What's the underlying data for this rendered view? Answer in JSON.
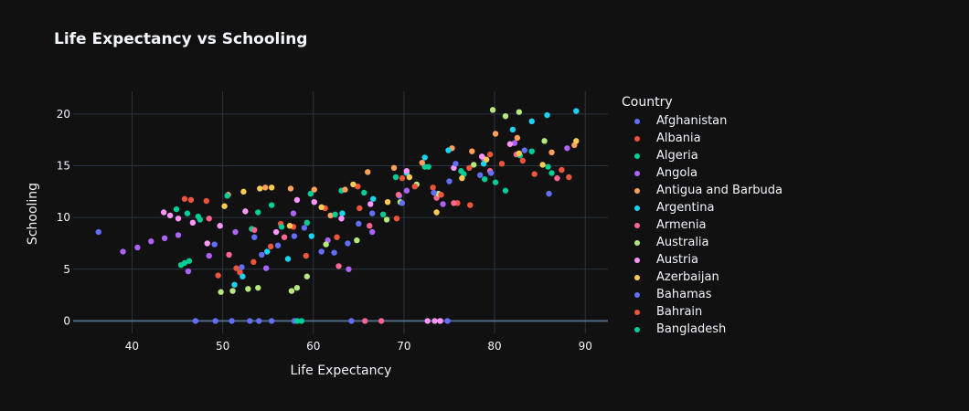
{
  "chart_data": {
    "type": "scatter",
    "title": "Life Expectancy vs Schooling",
    "xlabel": "Life Expectancy",
    "ylabel": "Schooling",
    "xlim": [
      33.5,
      92.5
    ],
    "ylim": [
      -1.2,
      22.2
    ],
    "xticks": [
      40,
      50,
      60,
      70,
      80,
      90
    ],
    "yticks": [
      0,
      5,
      10,
      15,
      20
    ],
    "grid": true,
    "legend_title": "Country",
    "legend_position": "right",
    "series": [
      {
        "name": "Afghanistan",
        "color": "#636efa",
        "points": [
          [
            36.3,
            8.6
          ],
          [
            47,
            0
          ],
          [
            49.2,
            0
          ],
          [
            51,
            0
          ],
          [
            53,
            0
          ],
          [
            54,
            0
          ],
          [
            55.4,
            0
          ],
          [
            57.9,
            0
          ],
          [
            64.2,
            0
          ],
          [
            74,
            0
          ],
          [
            74.8,
            0
          ],
          [
            53.5,
            8.1
          ],
          [
            56.1,
            7.3
          ],
          [
            59,
            9
          ],
          [
            62.3,
            6.6
          ],
          [
            65,
            9.4
          ],
          [
            69.5,
            12.1
          ],
          [
            75,
            13.5
          ],
          [
            78.4,
            14.1
          ]
        ]
      },
      {
        "name": "Albania",
        "color": "#EF553B",
        "points": [
          [
            45.8,
            11.8
          ],
          [
            46.5,
            11.7
          ],
          [
            48.2,
            11.6
          ],
          [
            49.5,
            4.4
          ],
          [
            51.9,
            4.7
          ],
          [
            55.3,
            7.2
          ],
          [
            57.8,
            9.1
          ],
          [
            61.3,
            10.9
          ],
          [
            64.9,
            13
          ],
          [
            69.8,
            13.8
          ],
          [
            73.2,
            12.9
          ],
          [
            75.9,
            11.4
          ],
          [
            77.2,
            14.8
          ],
          [
            79.5,
            16.1
          ],
          [
            83.1,
            15.5
          ],
          [
            87.4,
            14.6
          ]
        ]
      },
      {
        "name": "Algeria",
        "color": "#00cc96",
        "points": [
          [
            45.4,
            5.4
          ],
          [
            45.8,
            5.6
          ],
          [
            46.3,
            5.8
          ],
          [
            47.3,
            10.1
          ],
          [
            53.2,
            8.9
          ],
          [
            58.2,
            0
          ],
          [
            58.7,
            0
          ],
          [
            55.4,
            11.2
          ],
          [
            59.3,
            9.5
          ],
          [
            63.1,
            12.6
          ],
          [
            67.7,
            10.3
          ],
          [
            72.3,
            14.9
          ],
          [
            76.6,
            14.2
          ],
          [
            80.1,
            13.4
          ],
          [
            82.8,
            16
          ],
          [
            85.9,
            14.9
          ]
        ]
      },
      {
        "name": "Angola",
        "color": "#ab63fa",
        "points": [
          [
            39,
            6.7
          ],
          [
            40.6,
            7.1
          ],
          [
            42.1,
            7.7
          ],
          [
            43.6,
            8
          ],
          [
            45.1,
            8.3
          ],
          [
            46.2,
            4.8
          ],
          [
            48.5,
            6.3
          ],
          [
            51.4,
            8.6
          ],
          [
            54.8,
            5.1
          ],
          [
            57.8,
            10.4
          ],
          [
            61.6,
            7.8
          ],
          [
            63.9,
            5
          ],
          [
            66.5,
            8.6
          ],
          [
            70.3,
            12.6
          ],
          [
            74.3,
            11.3
          ],
          [
            78.8,
            15.7
          ],
          [
            82.2,
            17.2
          ],
          [
            88,
            16.7
          ]
        ]
      },
      {
        "name": "Antigua and Barbuda",
        "color": "#FFA15A",
        "points": [
          [
            50.6,
            12.2
          ],
          [
            54.7,
            12.9
          ],
          [
            57.5,
            12.8
          ],
          [
            60.1,
            12.7
          ],
          [
            61.9,
            10.2
          ],
          [
            63.5,
            12.7
          ],
          [
            66,
            14.4
          ],
          [
            68.9,
            14.8
          ],
          [
            72,
            15.3
          ],
          [
            75.3,
            16.7
          ],
          [
            77.5,
            16.4
          ],
          [
            80.1,
            18.1
          ],
          [
            82.5,
            17.7
          ],
          [
            86.3,
            16.3
          ],
          [
            88.8,
            17
          ]
        ]
      },
      {
        "name": "Argentina",
        "color": "#19d3f3",
        "points": [
          [
            51.3,
            3.5
          ],
          [
            52.2,
            4.3
          ],
          [
            54.9,
            6.7
          ],
          [
            57.2,
            6
          ],
          [
            59.8,
            8.2
          ],
          [
            63.2,
            10.4
          ],
          [
            66.6,
            11.8
          ],
          [
            70.3,
            14.3
          ],
          [
            72.3,
            15.8
          ],
          [
            74.9,
            16.5
          ],
          [
            78.8,
            15.2
          ],
          [
            82,
            18.5
          ],
          [
            84.1,
            19.3
          ],
          [
            85.8,
            19.9
          ],
          [
            89,
            20.3
          ]
        ]
      },
      {
        "name": "Armenia",
        "color": "#FF6692",
        "points": [
          [
            48.5,
            9.9
          ],
          [
            50.7,
            6.4
          ],
          [
            53.5,
            8.8
          ],
          [
            56.8,
            8.1
          ],
          [
            62.8,
            5.3
          ],
          [
            65.7,
            0
          ],
          [
            67.5,
            0
          ],
          [
            66.2,
            9.2
          ],
          [
            69.4,
            12.2
          ],
          [
            73.6,
            11.9
          ],
          [
            75.5,
            11.4
          ],
          [
            79.5,
            14.5
          ],
          [
            82.4,
            16.1
          ],
          [
            86.9,
            13.8
          ]
        ]
      },
      {
        "name": "Australia",
        "color": "#B6E880",
        "points": [
          [
            49.8,
            2.8
          ],
          [
            51.1,
            2.9
          ],
          [
            52.8,
            3.1
          ],
          [
            53.9,
            3.2
          ],
          [
            57.6,
            2.9
          ],
          [
            58.2,
            3.2
          ],
          [
            59.3,
            4.3
          ],
          [
            61.4,
            7.4
          ],
          [
            64.8,
            7.8
          ],
          [
            68.1,
            9.8
          ],
          [
            69.6,
            11.5
          ],
          [
            71.4,
            13.2
          ],
          [
            73.8,
            12.3
          ],
          [
            77.7,
            15.1
          ],
          [
            79.8,
            20.4
          ],
          [
            81.2,
            19.8
          ],
          [
            82.7,
            20.2
          ],
          [
            85.5,
            17.4
          ]
        ]
      },
      {
        "name": "Austria",
        "color": "#FF97FF",
        "points": [
          [
            43.5,
            10.5
          ],
          [
            44.2,
            10.2
          ],
          [
            45.1,
            9.9
          ],
          [
            46.7,
            9.5
          ],
          [
            48.3,
            7.5
          ],
          [
            49.7,
            9.2
          ],
          [
            52.5,
            10.6
          ],
          [
            55.9,
            8.6
          ],
          [
            58.2,
            11.7
          ],
          [
            60.1,
            11.5
          ],
          [
            63.1,
            9.9
          ],
          [
            66.3,
            11.3
          ],
          [
            70.3,
            14.5
          ],
          [
            72.6,
            0
          ],
          [
            73.4,
            0
          ],
          [
            74,
            0
          ],
          [
            75.5,
            14.8
          ],
          [
            78.6,
            15.9
          ],
          [
            81.7,
            17.1
          ]
        ]
      },
      {
        "name": "Azerbaijan",
        "color": "#FECB52",
        "points": [
          [
            50.2,
            11.1
          ],
          [
            52.3,
            12.5
          ],
          [
            54.1,
            12.8
          ],
          [
            55.4,
            12.9
          ],
          [
            57.4,
            9.2
          ],
          [
            60.9,
            11
          ],
          [
            64.4,
            13.2
          ],
          [
            68.2,
            11.5
          ],
          [
            70.6,
            13.9
          ],
          [
            73.6,
            10.5
          ],
          [
            76.4,
            13.8
          ],
          [
            79.1,
            15.6
          ],
          [
            82.7,
            16.2
          ],
          [
            85.3,
            15.1
          ],
          [
            89,
            17.4
          ]
        ]
      },
      {
        "name": "Bahamas",
        "color": "#636efa",
        "points": [
          [
            49.1,
            7.4
          ],
          [
            52.1,
            5.2
          ],
          [
            54.3,
            6.4
          ],
          [
            57.9,
            8.2
          ],
          [
            60.9,
            6.7
          ],
          [
            63.8,
            7.5
          ],
          [
            66.5,
            10.4
          ],
          [
            69.8,
            11.4
          ],
          [
            73.3,
            12.4
          ],
          [
            75.7,
            15.2
          ],
          [
            79.6,
            14.3
          ],
          [
            83.3,
            16.5
          ],
          [
            86,
            12.3
          ]
        ]
      },
      {
        "name": "Bahrain",
        "color": "#EF553B",
        "points": [
          [
            51.5,
            5.1
          ],
          [
            53.4,
            5.7
          ],
          [
            56.4,
            9.4
          ],
          [
            59.2,
            6.3
          ],
          [
            62.6,
            8.1
          ],
          [
            65.1,
            10.9
          ],
          [
            69.2,
            9.9
          ],
          [
            71.2,
            13
          ],
          [
            74.1,
            12.2
          ],
          [
            77.3,
            11.2
          ],
          [
            80.8,
            15.2
          ],
          [
            84.4,
            14.2
          ],
          [
            88.2,
            13.9
          ]
        ]
      },
      {
        "name": "Bangladesh",
        "color": "#00cc96",
        "points": [
          [
            44.9,
            10.8
          ],
          [
            46.1,
            10.4
          ],
          [
            47.5,
            9.8
          ],
          [
            50.5,
            12.1
          ],
          [
            53.9,
            10.5
          ],
          [
            56.5,
            9.1
          ],
          [
            59.7,
            12.3
          ],
          [
            62.4,
            10.3
          ],
          [
            65.6,
            12.4
          ],
          [
            69.1,
            13.9
          ],
          [
            72.7,
            14.9
          ],
          [
            76.3,
            14.5
          ],
          [
            78.9,
            13.7
          ],
          [
            81.2,
            12.6
          ],
          [
            84.1,
            16.4
          ],
          [
            86.3,
            14.3
          ]
        ]
      }
    ]
  }
}
